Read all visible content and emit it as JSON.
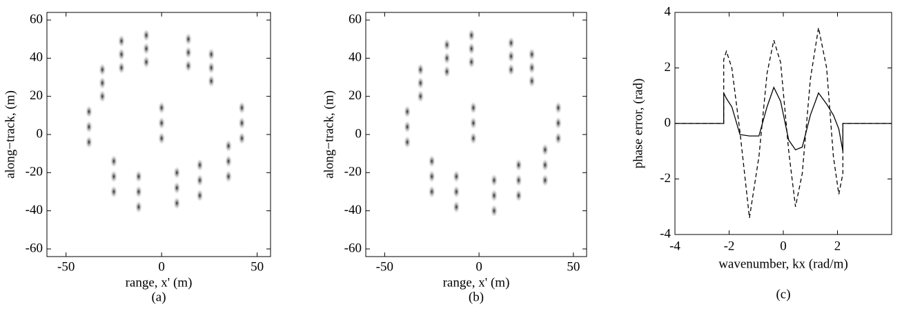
{
  "chart_data": [
    {
      "type": "scatter",
      "caption": "(a)",
      "x_label": "range, x' (m)",
      "y_label": "along−track, (m)",
      "xlim": [
        -60,
        57
      ],
      "ylim": [
        -64,
        64
      ],
      "xticks": [
        -50,
        0,
        50
      ],
      "yticks": [
        -60,
        -40,
        -20,
        0,
        20,
        40,
        60
      ],
      "color": "#111111",
      "x": [
        -38,
        -38,
        -38,
        -31,
        -31,
        -31,
        -21,
        -21,
        -21,
        -8,
        -8,
        -8,
        14,
        14,
        14,
        26,
        26,
        26,
        42,
        42,
        42,
        35,
        35,
        35,
        0,
        0,
        0,
        -25,
        -25,
        -25,
        -12,
        -12,
        -12,
        8,
        8,
        8,
        20,
        20,
        20
      ],
      "y": [
        12,
        4,
        -4,
        34,
        27,
        20,
        49,
        42,
        35,
        52,
        45,
        38,
        50,
        43,
        36,
        42,
        35,
        28,
        14,
        6,
        -2,
        -6,
        -14,
        -22,
        14,
        6,
        -2,
        -14,
        -22,
        -30,
        -22,
        -30,
        -38,
        -20,
        -28,
        -36,
        -16,
        -24,
        -32
      ]
    },
    {
      "type": "scatter",
      "caption": "(b)",
      "x_label": "range, x' (m)",
      "y_label": "along−track, (m)",
      "xlim": [
        -60,
        57
      ],
      "ylim": [
        -64,
        64
      ],
      "xticks": [
        -50,
        0,
        50
      ],
      "yticks": [
        -60,
        -40,
        -20,
        0,
        20,
        40,
        60
      ],
      "color": "#111111",
      "x": [
        -38,
        -38,
        -38,
        -31,
        -31,
        -31,
        -17,
        -17,
        -17,
        -4,
        -4,
        -4,
        17,
        17,
        17,
        28,
        28,
        28,
        42,
        42,
        42,
        35,
        35,
        35,
        -3,
        -3,
        -3,
        -25,
        -25,
        -25,
        -12,
        -12,
        -12,
        8,
        8,
        8,
        21,
        21,
        21
      ],
      "y": [
        12,
        4,
        -4,
        34,
        27,
        20,
        47,
        40,
        33,
        52,
        45,
        38,
        48,
        41,
        34,
        42,
        35,
        28,
        14,
        6,
        -2,
        -8,
        -16,
        -24,
        14,
        6,
        -2,
        -14,
        -22,
        -30,
        -22,
        -30,
        -38,
        -24,
        -32,
        -40,
        -16,
        -24,
        -32
      ]
    },
    {
      "type": "line",
      "caption": "(c)",
      "x_label": "wavenumber, kx (rad/m)",
      "y_label": "phase error, (rad)",
      "xlim": [
        -4,
        4
      ],
      "ylim": [
        -4,
        4
      ],
      "xticks": [
        -4,
        -2,
        0,
        2
      ],
      "yticks": [
        -4,
        -2,
        0,
        2,
        4
      ],
      "x": [
        -4,
        -2.2,
        -2.2,
        -2.1,
        -1.9,
        -1.6,
        -1.25,
        -0.9,
        -0.6,
        -0.35,
        -0.1,
        0.2,
        0.45,
        0.7,
        1.0,
        1.3,
        1.6,
        1.85,
        2.05,
        2.2,
        2.2,
        4
      ],
      "series": [
        {
          "color": "#000000",
          "dash": false,
          "values": [
            0,
            0,
            1.1,
            0.9,
            0.6,
            -0.4,
            -0.45,
            -0.45,
            0.6,
            1.3,
            0.8,
            -0.6,
            -0.95,
            -0.85,
            0.3,
            1.1,
            0.7,
            0.3,
            -0.2,
            -1.0,
            0,
            0
          ]
        },
        {
          "color": "#000000",
          "dash": true,
          "values": [
            0,
            0,
            2.3,
            2.6,
            2.0,
            -0.3,
            -3.4,
            -1.2,
            1.8,
            3.0,
            2.2,
            -1.0,
            -3.0,
            -1.8,
            1.6,
            3.45,
            2.0,
            -1.2,
            -2.55,
            -1.8,
            0,
            0
          ]
        }
      ]
    }
  ]
}
